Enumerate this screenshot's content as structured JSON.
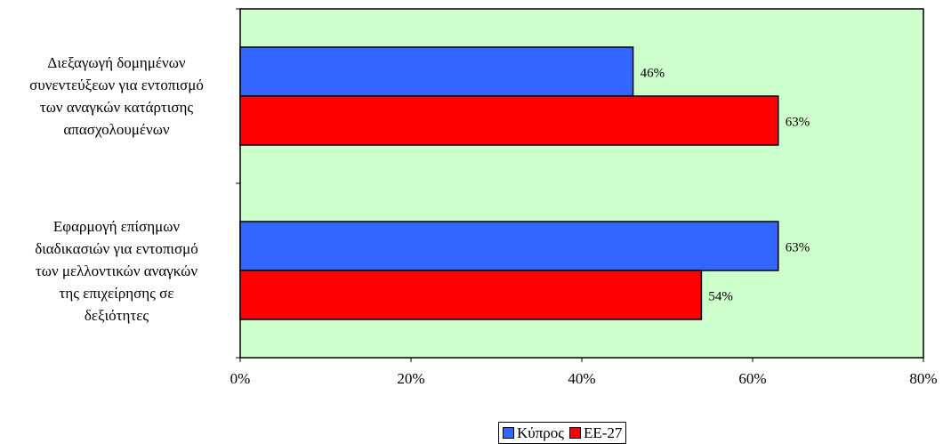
{
  "chart_data": {
    "type": "bar",
    "orientation": "horizontal",
    "categories": [
      [
        "Διεξαγωγή δομημένων",
        "συνεντεύξεων για εντοπισμό",
        "των αναγκών κατάρτισης",
        "απασχολουμένων"
      ],
      [
        "Εφαρμογή επίσημων",
        "διαδικασιών για εντοπισμό",
        "των μελλοντικών αναγκών",
        "της επιχείρησης σε",
        "δεξιότητες"
      ]
    ],
    "series": [
      {
        "name": "Κύπρος",
        "color": "#3366ff",
        "values": [
          46,
          63
        ],
        "labels": [
          "46%",
          "63%"
        ]
      },
      {
        "name": "ΕΕ-27",
        "color": "#ff0000",
        "values": [
          63,
          54
        ],
        "labels": [
          "63%",
          "54%"
        ]
      }
    ],
    "xlim": [
      0,
      80
    ],
    "xticks": [
      0,
      20,
      40,
      60,
      80
    ],
    "xtick_labels": [
      "0%",
      "20%",
      "40%",
      "60%",
      "80%"
    ],
    "plot_background": "#ccffcc",
    "grid": false,
    "legend_position": "bottom"
  }
}
